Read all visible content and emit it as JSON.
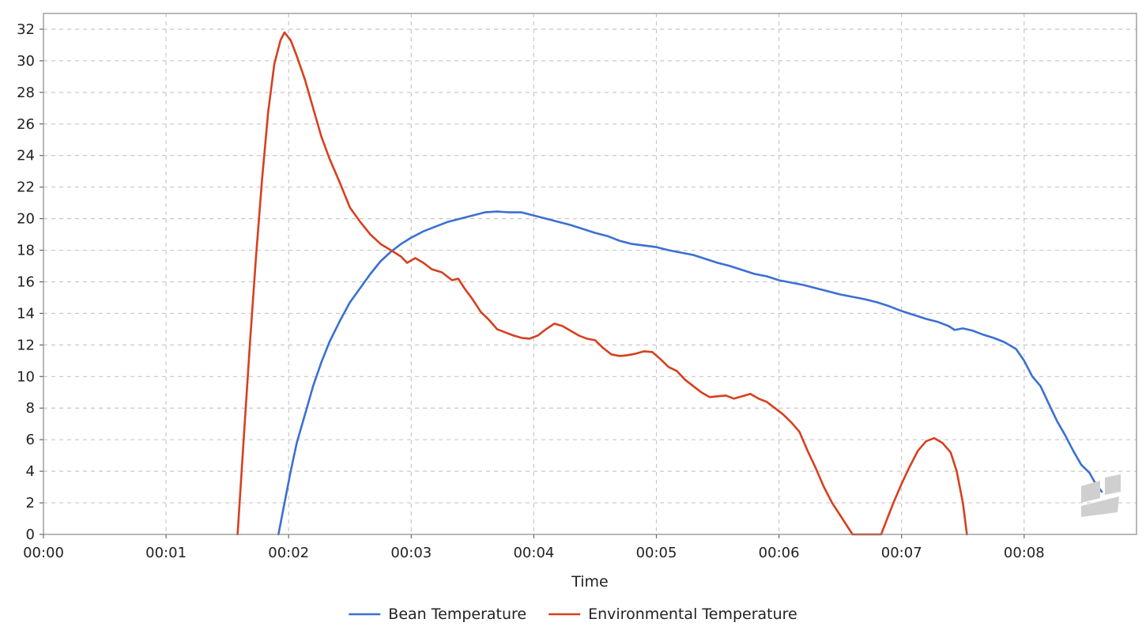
{
  "chart_data": {
    "type": "line",
    "title": "",
    "xlabel": "Time",
    "ylabel": "",
    "x_unit": "seconds",
    "xlim": [
      0,
      535
    ],
    "ylim": [
      0,
      33
    ],
    "x_ticks": [
      0,
      60,
      120,
      180,
      240,
      300,
      360,
      420,
      480
    ],
    "x_tick_labels": [
      "00:00",
      "00:01",
      "00:02",
      "00:03",
      "00:04",
      "00:05",
      "00:06",
      "00:07",
      "00:08"
    ],
    "y_ticks": [
      0,
      2,
      4,
      6,
      8,
      10,
      12,
      14,
      16,
      18,
      20,
      22,
      24,
      26,
      28,
      30,
      32
    ],
    "grid": true,
    "legend_position": "bottom",
    "series": [
      {
        "name": "Bean Temperature",
        "color": "#3b6fd4",
        "points": [
          [
            115,
            0
          ],
          [
            118,
            2
          ],
          [
            121,
            4
          ],
          [
            124,
            5.8
          ],
          [
            128,
            7.6
          ],
          [
            132,
            9.4
          ],
          [
            136,
            10.9
          ],
          [
            140,
            12.2
          ],
          [
            145,
            13.5
          ],
          [
            150,
            14.7
          ],
          [
            155,
            15.6
          ],
          [
            160,
            16.5
          ],
          [
            165,
            17.3
          ],
          [
            170,
            17.9
          ],
          [
            175,
            18.4
          ],
          [
            180,
            18.8
          ],
          [
            186,
            19.2
          ],
          [
            192,
            19.5
          ],
          [
            198,
            19.8
          ],
          [
            204,
            20.0
          ],
          [
            210,
            20.2
          ],
          [
            216,
            20.4
          ],
          [
            222,
            20.45
          ],
          [
            228,
            20.4
          ],
          [
            234,
            20.4
          ],
          [
            240,
            20.2
          ],
          [
            246,
            20.0
          ],
          [
            252,
            19.8
          ],
          [
            258,
            19.6
          ],
          [
            264,
            19.35
          ],
          [
            270,
            19.1
          ],
          [
            276,
            18.9
          ],
          [
            282,
            18.6
          ],
          [
            288,
            18.4
          ],
          [
            294,
            18.3
          ],
          [
            300,
            18.2
          ],
          [
            306,
            18.0
          ],
          [
            312,
            17.85
          ],
          [
            318,
            17.7
          ],
          [
            324,
            17.45
          ],
          [
            330,
            17.2
          ],
          [
            336,
            17.0
          ],
          [
            342,
            16.75
          ],
          [
            348,
            16.5
          ],
          [
            354,
            16.35
          ],
          [
            360,
            16.1
          ],
          [
            366,
            15.95
          ],
          [
            372,
            15.8
          ],
          [
            378,
            15.6
          ],
          [
            384,
            15.4
          ],
          [
            390,
            15.2
          ],
          [
            396,
            15.05
          ],
          [
            402,
            14.9
          ],
          [
            408,
            14.7
          ],
          [
            414,
            14.45
          ],
          [
            420,
            14.15
          ],
          [
            426,
            13.9
          ],
          [
            432,
            13.65
          ],
          [
            438,
            13.45
          ],
          [
            443,
            13.2
          ],
          [
            446,
            12.95
          ],
          [
            450,
            13.05
          ],
          [
            455,
            12.9
          ],
          [
            460,
            12.65
          ],
          [
            465,
            12.45
          ],
          [
            470,
            12.2
          ],
          [
            476,
            11.75
          ],
          [
            480,
            11.0
          ],
          [
            484,
            10.0
          ],
          [
            488,
            9.4
          ],
          [
            492,
            8.3
          ],
          [
            496,
            7.2
          ],
          [
            500,
            6.3
          ],
          [
            504,
            5.3
          ],
          [
            508,
            4.4
          ],
          [
            512,
            3.9
          ],
          [
            515,
            3.2
          ],
          [
            518,
            2.7
          ]
        ]
      },
      {
        "name": "Environmental Temperature",
        "color": "#d6401f",
        "points": [
          [
            95,
            0
          ],
          [
            98,
            6
          ],
          [
            101,
            12
          ],
          [
            104,
            17.5
          ],
          [
            107,
            22.5
          ],
          [
            110,
            26.8
          ],
          [
            113,
            29.8
          ],
          [
            116,
            31.3
          ],
          [
            118,
            31.8
          ],
          [
            121,
            31.3
          ],
          [
            124,
            30.3
          ],
          [
            128,
            28.8
          ],
          [
            132,
            27.0
          ],
          [
            136,
            25.2
          ],
          [
            140,
            23.8
          ],
          [
            145,
            22.3
          ],
          [
            150,
            20.7
          ],
          [
            155,
            19.8
          ],
          [
            160,
            19.0
          ],
          [
            165,
            18.4
          ],
          [
            170,
            18.0
          ],
          [
            175,
            17.6
          ],
          [
            178,
            17.2
          ],
          [
            182,
            17.5
          ],
          [
            186,
            17.2
          ],
          [
            190,
            16.8
          ],
          [
            195,
            16.6
          ],
          [
            200,
            16.1
          ],
          [
            203,
            16.2
          ],
          [
            206,
            15.6
          ],
          [
            210,
            14.9
          ],
          [
            214,
            14.1
          ],
          [
            218,
            13.6
          ],
          [
            222,
            13.0
          ],
          [
            226,
            12.8
          ],
          [
            230,
            12.6
          ],
          [
            234,
            12.45
          ],
          [
            238,
            12.4
          ],
          [
            242,
            12.6
          ],
          [
            246,
            13.0
          ],
          [
            250,
            13.35
          ],
          [
            254,
            13.2
          ],
          [
            258,
            12.9
          ],
          [
            262,
            12.6
          ],
          [
            266,
            12.4
          ],
          [
            270,
            12.3
          ],
          [
            274,
            11.8
          ],
          [
            278,
            11.4
          ],
          [
            282,
            11.3
          ],
          [
            286,
            11.35
          ],
          [
            290,
            11.45
          ],
          [
            294,
            11.6
          ],
          [
            298,
            11.55
          ],
          [
            302,
            11.1
          ],
          [
            306,
            10.6
          ],
          [
            310,
            10.35
          ],
          [
            314,
            9.8
          ],
          [
            318,
            9.4
          ],
          [
            322,
            9.0
          ],
          [
            326,
            8.7
          ],
          [
            330,
            8.75
          ],
          [
            334,
            8.8
          ],
          [
            338,
            8.6
          ],
          [
            342,
            8.75
          ],
          [
            346,
            8.9
          ],
          [
            350,
            8.6
          ],
          [
            354,
            8.4
          ],
          [
            358,
            8.0
          ],
          [
            362,
            7.6
          ],
          [
            366,
            7.1
          ],
          [
            370,
            6.5
          ],
          [
            374,
            5.3
          ],
          [
            378,
            4.2
          ],
          [
            382,
            3.0
          ],
          [
            386,
            2.0
          ],
          [
            390,
            1.2
          ],
          [
            394,
            0.4
          ],
          [
            396,
            0
          ],
          [
            410,
            0
          ],
          [
            413,
            1.0
          ],
          [
            416,
            2.0
          ],
          [
            420,
            3.2
          ],
          [
            424,
            4.3
          ],
          [
            428,
            5.3
          ],
          [
            432,
            5.9
          ],
          [
            436,
            6.1
          ],
          [
            440,
            5.8
          ],
          [
            444,
            5.2
          ],
          [
            447,
            4.0
          ],
          [
            450,
            2.0
          ],
          [
            452,
            0
          ]
        ]
      }
    ]
  }
}
